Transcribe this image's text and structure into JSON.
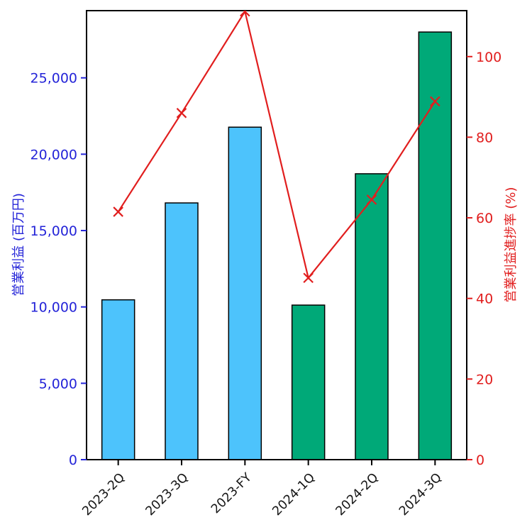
{
  "figure": {
    "background": "#ffffff",
    "title": ""
  },
  "chart_data": {
    "type": "bar",
    "subtype": "bar-line-combo-dual-axis",
    "categories": [
      "2023-2Q",
      "2023-3Q",
      "2023-FY",
      "2024-1Q",
      "2024-2Q",
      "2024-3Q"
    ],
    "series": [
      {
        "name": "営業利益",
        "type": "bar",
        "axis": "left",
        "values": [
          10465,
          16810,
          21770,
          10120,
          18720,
          28000
        ],
        "bar_colors": [
          "#4dc3fc",
          "#4dc3fc",
          "#4dc3fc",
          "#00a978",
          "#00a978",
          "#00a978"
        ],
        "edge_color": "#000000"
      },
      {
        "name": "営業利益進捗率",
        "type": "line",
        "axis": "right",
        "values": [
          61.5,
          86.0,
          111.2,
          45.1,
          64.5,
          88.9
        ],
        "color": "#e11e1e",
        "marker": "x"
      }
    ],
    "title": "",
    "xlabel": "",
    "ylabel_left": "営業利益 (百万円)",
    "ylabel_right": "営業利益進捗率 (%)",
    "left_axis": {
      "color": "#2424d8",
      "ticks": [
        0,
        5000,
        10000,
        15000,
        20000,
        25000
      ],
      "tick_labels": [
        "0",
        "5,000",
        "10,000",
        "15,000",
        "20,000",
        "25,000"
      ],
      "ylim": [
        0,
        29400
      ]
    },
    "right_axis": {
      "color": "#e11e1e",
      "ticks": [
        0,
        20,
        40,
        60,
        80,
        100
      ],
      "tick_labels": [
        "0",
        "20",
        "40",
        "60",
        "80",
        "100"
      ],
      "ylim": [
        0,
        111.4
      ]
    },
    "x_tick_rotation": 45,
    "grid": false,
    "legend": false,
    "spine_color": "#000000"
  }
}
